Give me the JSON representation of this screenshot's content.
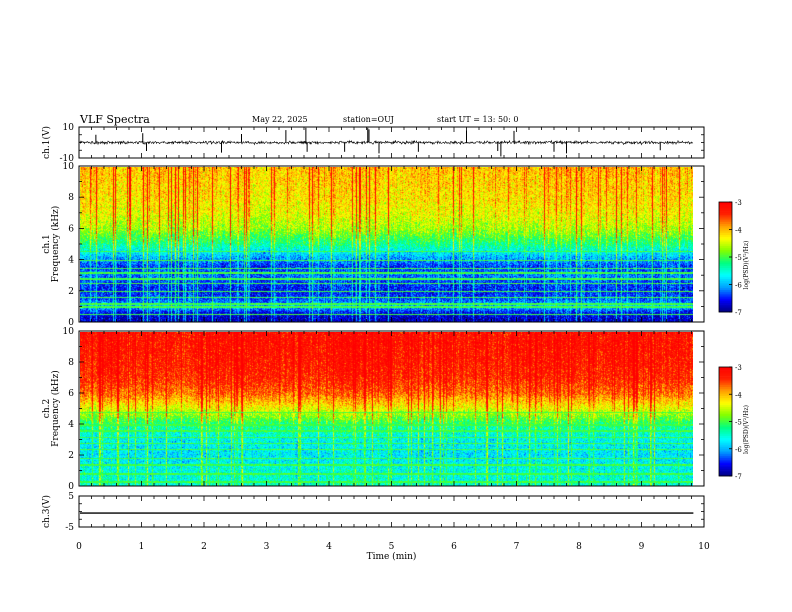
{
  "header": {
    "title": "VLF Spectra",
    "date": "May 22, 2025",
    "station": "station=OUJ",
    "start_ut": "start  UT  =   13: 50: 0"
  },
  "chart_data": [
    {
      "name": "ch1-waveform",
      "type": "line",
      "ylabel": "ch.1(V)",
      "ylim": [
        -10,
        10
      ],
      "yticks": [
        "10",
        "-10"
      ],
      "xlim": [
        0,
        10
      ],
      "x_data_end": 9.83,
      "baseline": 0,
      "spikes": [
        {
          "t": 0.27,
          "v": 5.0
        },
        {
          "t": 1.02,
          "v": 6.0
        },
        {
          "t": 1.08,
          "v": -5.5
        },
        {
          "t": 2.28,
          "v": -6.5
        },
        {
          "t": 2.6,
          "v": 5.5
        },
        {
          "t": 3.31,
          "v": 8.0
        },
        {
          "t": 3.63,
          "v": 9.5
        },
        {
          "t": 3.65,
          "v": -6.0
        },
        {
          "t": 4.25,
          "v": -6.0
        },
        {
          "t": 4.62,
          "v": 9.5
        },
        {
          "t": 4.64,
          "v": 8.5
        },
        {
          "t": 4.8,
          "v": -7.0
        },
        {
          "t": 5.43,
          "v": -6.0
        },
        {
          "t": 6.2,
          "v": 8.0
        },
        {
          "t": 6.7,
          "v": -5.5
        },
        {
          "t": 6.75,
          "v": -9.0
        },
        {
          "t": 6.96,
          "v": 7.5
        },
        {
          "t": 7.6,
          "v": -6.0
        },
        {
          "t": 7.8,
          "v": -7.0
        },
        {
          "t": 9.3,
          "v": -5.0
        }
      ]
    },
    {
      "name": "ch1-spectrogram",
      "type": "heatmap",
      "ylabel": "ch.1\nFrequency (kHz)",
      "xlim": [
        0,
        10
      ],
      "x_data_end": 9.83,
      "ylim": [
        0,
        10
      ],
      "yticks": [
        "0",
        "2",
        "4",
        "6",
        "8",
        "10"
      ],
      "colorbar": {
        "label": "log(PSD)(V²/Hz)",
        "min": -7,
        "max": -3,
        "ticks": [
          "-3",
          "-4",
          "-5",
          "-6",
          "-7"
        ]
      },
      "profile": [
        {
          "f": 0.0,
          "v": -6.9
        },
        {
          "f": 0.6,
          "v": -6.7
        },
        {
          "f": 1.0,
          "v": -6.0
        },
        {
          "f": 1.5,
          "v": -6.4
        },
        {
          "f": 2.0,
          "v": -6.6
        },
        {
          "f": 2.5,
          "v": -6.5
        },
        {
          "f": 3.0,
          "v": -6.3
        },
        {
          "f": 3.6,
          "v": -6.5
        },
        {
          "f": 4.2,
          "v": -6.1
        },
        {
          "f": 5.0,
          "v": -5.4
        },
        {
          "f": 6.0,
          "v": -4.8
        },
        {
          "f": 7.0,
          "v": -4.5
        },
        {
          "f": 8.0,
          "v": -4.35
        },
        {
          "f": 10.0,
          "v": -4.2
        }
      ],
      "lines_khz": [
        0.5,
        1.0,
        1.2,
        1.6,
        2.0,
        2.5,
        2.8,
        3.2,
        3.5,
        4.0,
        4.6
      ]
    },
    {
      "name": "ch2-spectrogram",
      "type": "heatmap",
      "ylabel": "ch.2\nFrequency (kHz)",
      "xlim": [
        0,
        10
      ],
      "x_data_end": 9.83,
      "ylim": [
        0,
        10
      ],
      "yticks": [
        "0",
        "2",
        "4",
        "6",
        "8",
        "10"
      ],
      "colorbar": {
        "label": "log(PSD)(V²/Hz)",
        "min": -7,
        "max": -3,
        "ticks": [
          "-3",
          "-4",
          "-5",
          "-6",
          "-7"
        ]
      },
      "profile": [
        {
          "f": 0.0,
          "v": -5.6
        },
        {
          "f": 1.0,
          "v": -5.7
        },
        {
          "f": 2.0,
          "v": -5.9
        },
        {
          "f": 3.0,
          "v": -5.8
        },
        {
          "f": 4.0,
          "v": -5.4
        },
        {
          "f": 5.0,
          "v": -4.6
        },
        {
          "f": 6.0,
          "v": -3.9
        },
        {
          "f": 7.0,
          "v": -3.6
        },
        {
          "f": 8.0,
          "v": -3.5
        },
        {
          "f": 10.0,
          "v": -3.4
        }
      ],
      "lines_khz": [
        0.3,
        0.8,
        1.4,
        1.8,
        2.4,
        2.8,
        3.2,
        3.6,
        4.0,
        4.8
      ]
    },
    {
      "name": "ch3-waveform",
      "type": "line",
      "ylabel": "ch.3(V)",
      "ylim": [
        -5,
        5
      ],
      "yticks": [
        "5",
        "-5"
      ],
      "xlim": [
        0,
        10
      ],
      "x_data_end": 9.83,
      "baseline": -0.5,
      "spikes": []
    }
  ],
  "xaxis": {
    "label": "Time (min)",
    "ticks": [
      "0",
      "1",
      "2",
      "3",
      "4",
      "5",
      "6",
      "7",
      "8",
      "9",
      "10"
    ]
  },
  "colors": {
    "colormap": [
      "#000080",
      "#0000ff",
      "#00a0ff",
      "#00ffff",
      "#00ff80",
      "#80ff00",
      "#ffff00",
      "#ffa000",
      "#ff2000",
      "#ff0000",
      "#ffffff"
    ],
    "trace": "#000000",
    "axes": "#000000"
  }
}
